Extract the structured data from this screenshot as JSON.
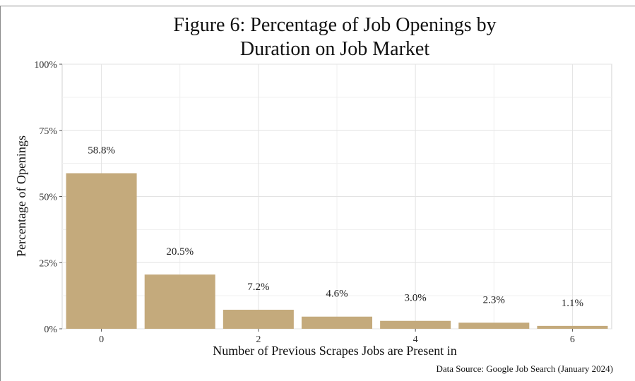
{
  "chart_data": {
    "type": "bar",
    "title_lines": [
      "Figure 6: Percentage of Job Openings by",
      "Duration on Job Market"
    ],
    "xlabel": "Number of Previous Scrapes Jobs are Present in",
    "ylabel": "Percentage of Openings",
    "caption": "Data Source: Google Job Search (January 2024)",
    "x": [
      0,
      1,
      2,
      3,
      4,
      5,
      6
    ],
    "values": [
      58.8,
      20.5,
      7.2,
      4.6,
      3.0,
      2.3,
      1.1
    ],
    "data_labels": [
      "58.8%",
      "20.5%",
      "7.2%",
      "4.6%",
      "3.0%",
      "2.3%",
      "1.1%"
    ],
    "x_ticks": [
      0,
      2,
      4,
      6
    ],
    "x_tick_labels": [
      "0",
      "2",
      "4",
      "6"
    ],
    "y_ticks": [
      0,
      25,
      50,
      75,
      100
    ],
    "y_tick_labels": [
      "0%",
      "25%",
      "50%",
      "75%",
      "100%"
    ],
    "ylim": [
      0,
      100
    ],
    "xlim": [
      -0.5,
      6.5
    ],
    "grid": true,
    "bar_color": "#c4aa7c",
    "grid_color": "#e3e3e3"
  }
}
